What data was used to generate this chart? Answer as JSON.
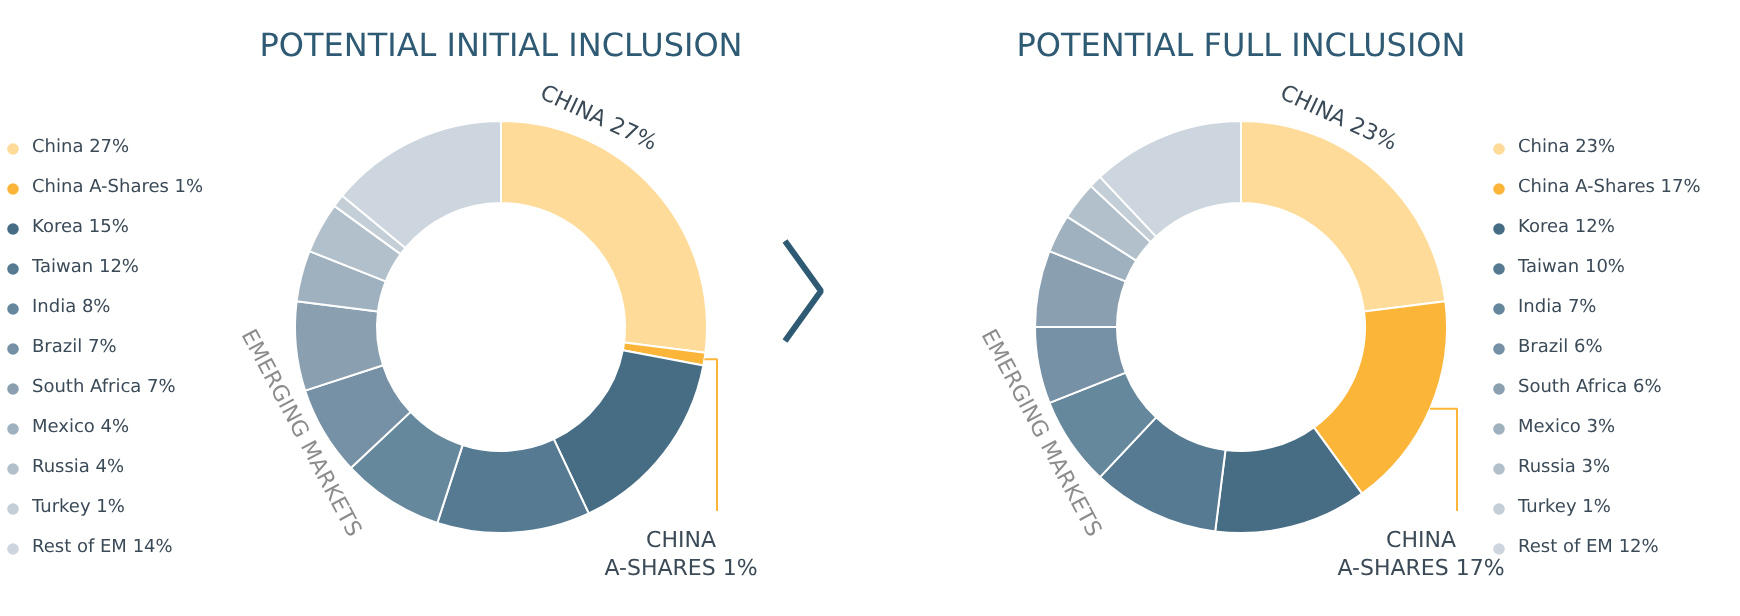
{
  "chart_data": [
    {
      "type": "donut",
      "title": "POTENTIAL INITIAL INCLUSION",
      "legend": "left",
      "categories": [
        "China 27%",
        "China A-Shares 1%",
        "Korea 15%",
        "Taiwan 12%",
        "India 8%",
        "Brazil 7%",
        "South Africa 7%",
        "Mexico 4%",
        "Russia 4%",
        "Turkey 1%",
        "Rest of EM 14%"
      ],
      "values": [
        27,
        1,
        15,
        12,
        8,
        7,
        7,
        4,
        4,
        1,
        14
      ],
      "colors": [
        "#fedb99",
        "#fbb63a",
        "#476d85",
        "#557a91",
        "#66889d",
        "#7690a5",
        "#8aa0b1",
        "#9fb1bf",
        "#b2c0cb",
        "#c3ced7",
        "#cdd6de"
      ],
      "annotations": [
        "CHINA 27%",
        "CHINA A-SHARES 1%",
        "EMERGING MARKETS"
      ]
    },
    {
      "type": "donut",
      "title": "POTENTIAL FULL INCLUSION",
      "legend": "right",
      "categories": [
        "China 23%",
        "China A-Shares 17%",
        "Korea 12%",
        "Taiwan 10%",
        "India 7%",
        "Brazil 6%",
        "South Africa 6%",
        "Mexico 3%",
        "Russia 3%",
        "Turkey 1%",
        "Rest of EM 12%"
      ],
      "values": [
        23,
        17,
        12,
        10,
        7,
        6,
        6,
        3,
        3,
        1,
        12
      ],
      "colors": [
        "#fedb99",
        "#fbb63a",
        "#476d85",
        "#557a91",
        "#66889d",
        "#7690a5",
        "#8aa0b1",
        "#9fb1bf",
        "#b2c0cb",
        "#c3ced7",
        "#cdd6de"
      ],
      "annotations": [
        "CHINA 23%",
        "CHINA A-SHARES 17%",
        "EMERGING MARKETS"
      ]
    }
  ]
}
